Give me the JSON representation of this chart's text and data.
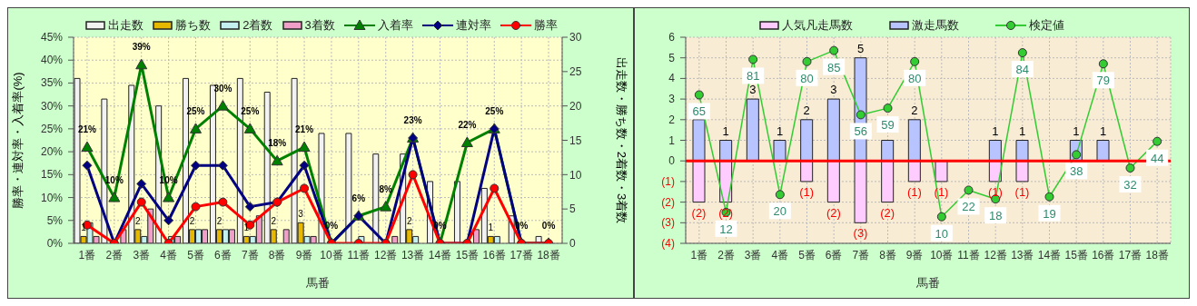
{
  "chart_data": [
    {
      "type": "bar",
      "xlabel": "馬番",
      "ylabel": "勝率・連対率・入着率(%)",
      "y2label": "出走数・勝ち数・2着数・3着数",
      "categories": [
        "1番",
        "2番",
        "3番",
        "4番",
        "5番",
        "6番",
        "7番",
        "8番",
        "9番",
        "10番",
        "11番",
        "12番",
        "13番",
        "14番",
        "15番",
        "16番",
        "17番",
        "18番"
      ],
      "series": [
        {
          "name": "出走数",
          "axis": "y2",
          "color": "#f2f2f2",
          "values": [
            24,
            21,
            23,
            20,
            24,
            23,
            24,
            22,
            24,
            16,
            16,
            13,
            13,
            9,
            9,
            8,
            4,
            1
          ]
        },
        {
          "name": "勝ち数",
          "axis": "y2",
          "color": "#e6b800",
          "values": [
            1,
            0,
            2,
            0,
            2,
            2,
            1,
            2,
            3,
            0,
            0,
            0,
            2,
            0,
            0,
            1,
            0,
            0
          ],
          "value_labels": [
            "1",
            null,
            "2",
            null,
            "2",
            "2",
            "1",
            "2",
            "3",
            null,
            null,
            null,
            "2",
            null,
            null,
            "1",
            null,
            null
          ]
        },
        {
          "name": "2着数",
          "axis": "y2",
          "color": "#c4f0f0",
          "values": [
            3,
            0,
            1,
            1,
            2,
            2,
            1,
            0,
            1,
            0,
            1,
            0,
            1,
            0,
            0,
            1,
            0,
            0
          ]
        },
        {
          "name": "3着数",
          "axis": "y2",
          "color": "#f0a0c8",
          "values": [
            1,
            2,
            5,
            1,
            2,
            2,
            4,
            2,
            1,
            0,
            0,
            1,
            0,
            0,
            2,
            0,
            0,
            0
          ]
        },
        {
          "name": "入着率",
          "type": "line",
          "color": "#008000",
          "marker": "triangle",
          "values": [
            21,
            10,
            39,
            10,
            25,
            30,
            25,
            18,
            21,
            0,
            6,
            8,
            23,
            0,
            22,
            25,
            0,
            0
          ],
          "value_labels": [
            "21%",
            "10%",
            "39%",
            "10%",
            "25%",
            "30%",
            "25%",
            "18%",
            "21%",
            "0%",
            "6%",
            "8%",
            "23%",
            "0%",
            "22%",
            "25%",
            "0%",
            "0%"
          ]
        },
        {
          "name": "連対率",
          "type": "line",
          "color": "#000080",
          "marker": "diamond",
          "values": [
            17,
            0,
            13,
            5,
            17,
            17,
            8,
            9,
            17,
            0,
            6,
            0,
            23,
            0,
            0,
            25,
            0,
            0
          ]
        },
        {
          "name": "勝率",
          "type": "line",
          "color": "#ff0000",
          "marker": "circle",
          "values": [
            4,
            0,
            9,
            0,
            8,
            9,
            4,
            9,
            12,
            0,
            0,
            0,
            15,
            0,
            0,
            12,
            0,
            0
          ]
        }
      ],
      "ylim": [
        0,
        45
      ],
      "yticks": [
        {
          "value": 0,
          "label": "0%"
        },
        {
          "value": 5,
          "label": "5%"
        },
        {
          "value": 10,
          "label": "10%"
        },
        {
          "value": 15,
          "label": "15%"
        },
        {
          "value": 20,
          "label": "20%"
        },
        {
          "value": 25,
          "label": "25%"
        },
        {
          "value": 30,
          "label": "30%"
        },
        {
          "value": 35,
          "label": "35%"
        },
        {
          "value": 40,
          "label": "40%"
        },
        {
          "value": 45,
          "label": "45%"
        }
      ],
      "y2lim": [
        0,
        30
      ],
      "y2ticks": [
        0,
        5,
        10,
        15,
        20,
        25,
        30
      ],
      "grid": true,
      "legend": "top",
      "line_style": "solid"
    },
    {
      "type": "bar",
      "xlabel": "馬番",
      "stacked": true,
      "categories": [
        "1番",
        "2番",
        "3番",
        "4番",
        "5番",
        "6番",
        "7番",
        "8番",
        "9番",
        "10番",
        "11番",
        "12番",
        "13番",
        "14番",
        "15番",
        "16番",
        "17番",
        "18番"
      ],
      "series": [
        {
          "name": "人気凡走馬数",
          "color": "#ffccff",
          "values": [
            -2,
            -2,
            0,
            0,
            -1,
            -2,
            -3,
            -2,
            -1,
            -1,
            0,
            -1,
            -1,
            0,
            0,
            0,
            0,
            0
          ],
          "value_labels": [
            "(2)",
            "(2)",
            null,
            null,
            "(1)",
            "(2)",
            "(3)",
            "(2)",
            "(1)",
            "(1)",
            null,
            "(1)",
            "(1)",
            null,
            null,
            null,
            null,
            null
          ]
        },
        {
          "name": "激走馬数",
          "color": "#b8c4ff",
          "values": [
            2,
            1,
            3,
            1,
            2,
            3,
            5,
            1,
            2,
            0,
            0,
            1,
            1,
            0,
            1,
            1,
            0,
            0
          ],
          "value_labels": [
            null,
            "1",
            "3",
            "1",
            "2",
            "3",
            "5",
            null,
            "2",
            null,
            null,
            "1",
            "1",
            null,
            "1",
            "1",
            null,
            null
          ]
        },
        {
          "name": "検定値",
          "type": "line",
          "axis": "y2",
          "color": "#33cc33",
          "marker": "circle",
          "values": [
            65,
            12,
            81,
            20,
            80,
            85,
            56,
            59,
            80,
            10,
            22,
            18,
            84,
            19,
            38,
            79,
            32,
            44
          ],
          "value_labels": [
            "65",
            "12",
            "81",
            "20",
            "80",
            "85",
            "56",
            "59",
            "80",
            "10",
            "22",
            "18",
            "84",
            "19",
            "38",
            "79",
            "32",
            "44"
          ]
        }
      ],
      "ylim": [
        -4,
        6
      ],
      "yticks": [
        {
          "value": -4,
          "label": "(4)"
        },
        {
          "value": -3,
          "label": "(3)"
        },
        {
          "value": -2,
          "label": "(2)"
        },
        {
          "value": -1,
          "label": "(1)"
        },
        0,
        1,
        2,
        3,
        4,
        5,
        6
      ],
      "y2lim": [
        -2,
        91
      ],
      "tick_labels": "xy",
      "ref_lines": [
        {
          "axis": "y",
          "value": 0,
          "color": "#ff0000"
        }
      ],
      "grid": true,
      "legend": "top",
      "line_style": "solid"
    }
  ]
}
